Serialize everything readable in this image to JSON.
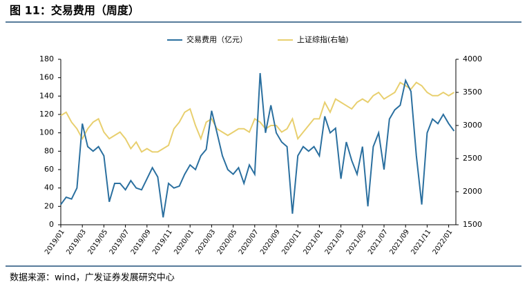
{
  "chart_data": {
    "type": "line",
    "title": "图 11：交易费用（周度）",
    "source": "数据来源：wind，广发证券发展研究中心",
    "categories": [
      "2019/01",
      null,
      null,
      null,
      "2019/03",
      null,
      null,
      null,
      "2019/05",
      null,
      null,
      null,
      "2019/07",
      null,
      null,
      null,
      "2019/09",
      null,
      null,
      null,
      "2019/11",
      null,
      null,
      null,
      "2020/01",
      null,
      null,
      null,
      "2020/03",
      null,
      null,
      null,
      "2020/05",
      null,
      null,
      null,
      "2020/07",
      null,
      null,
      null,
      "2020/09",
      null,
      null,
      null,
      "2020/11",
      null,
      null,
      null,
      "2021/01",
      null,
      null,
      null,
      "2021/03",
      null,
      null,
      null,
      "2021/05",
      null,
      null,
      null,
      "2021/07",
      null,
      null,
      null,
      "2021/09",
      null,
      null,
      null,
      "2021/11",
      null,
      null,
      null,
      "2022/01",
      null
    ],
    "series": [
      {
        "name": "交易费用（亿元）",
        "color": "#2a6f9f",
        "values": [
          22,
          30,
          28,
          40,
          110,
          85,
          80,
          85,
          75,
          25,
          45,
          45,
          38,
          48,
          40,
          38,
          50,
          62,
          52,
          8,
          45,
          40,
          42,
          55,
          65,
          60,
          75,
          82,
          124,
          100,
          75,
          60,
          55,
          62,
          45,
          65,
          55,
          165,
          100,
          130,
          100,
          90,
          85,
          12,
          75,
          85,
          80,
          85,
          75,
          118,
          100,
          105,
          50,
          90,
          70,
          55,
          85,
          20,
          85,
          100,
          60,
          115,
          125,
          130,
          157,
          145,
          75,
          22,
          100,
          115,
          110,
          120,
          110,
          102
        ]
      },
      {
        "name": "上证综指(右轴)",
        "color": "#e8cf6e",
        "axis": "y2",
        "values": [
          3150,
          3200,
          3050,
          2950,
          2800,
          2950,
          3050,
          3100,
          2900,
          2800,
          2850,
          2900,
          2800,
          2650,
          2750,
          2600,
          2650,
          2600,
          2600,
          2650,
          2700,
          2950,
          3050,
          3200,
          3250,
          3000,
          2800,
          3050,
          3100,
          2950,
          2900,
          2850,
          2900,
          2950,
          2950,
          2900,
          3100,
          3050,
          2950,
          3000,
          3000,
          2900,
          2950,
          3100,
          2800,
          2900,
          3000,
          3100,
          3100,
          3350,
          3200,
          3400,
          3350,
          3300,
          3250,
          3350,
          3400,
          3350,
          3450,
          3500,
          3400,
          3450,
          3500,
          3650,
          3600,
          3550,
          3650,
          3600,
          3500,
          3450,
          3450,
          3500,
          3450,
          3500
        ]
      }
    ],
    "ylim": [
      0,
      180
    ],
    "yticks": [
      0,
      20,
      40,
      60,
      80,
      100,
      120,
      140,
      160,
      180
    ],
    "y2lim": [
      1500,
      4000
    ],
    "y2ticks": [
      1500,
      2000,
      2500,
      3000,
      3500,
      4000
    ]
  }
}
